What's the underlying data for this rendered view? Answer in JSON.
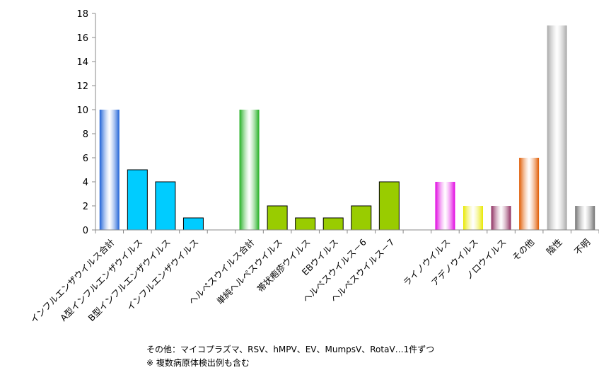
{
  "chart_data": {
    "type": "bar",
    "title": "",
    "xlabel": "",
    "ylabel": "",
    "ylim": [
      0,
      18
    ],
    "yticks": [
      0,
      2,
      4,
      6,
      8,
      10,
      12,
      14,
      16,
      18
    ],
    "grid": false,
    "legend": "none",
    "categories": [
      "インフルエンザウイルス合計",
      "A型インフルエンザウイルス",
      "B型インフルエンザウイルス",
      "インフルエンザウイルス",
      "",
      "ヘルペスウイルス合計",
      "単純ヘルペスウイルス",
      "帯状疱疹ウイルス",
      "EBウイルス",
      "ヘルペスウイルス－6",
      "ヘルペスウイルス－7",
      "",
      "ライノウイルス",
      "アデノウイルス",
      "ノロウイルス",
      "その他",
      "陰性",
      "不明"
    ],
    "values": [
      10,
      5,
      4,
      1,
      0,
      10,
      2,
      1,
      1,
      2,
      4,
      0,
      4,
      2,
      2,
      6,
      17,
      2
    ],
    "colors": [
      "#1a5fd6",
      "#00ccff",
      "#00ccff",
      "#00ccff",
      "",
      "#1fae1f",
      "#99cc00",
      "#99cc00",
      "#99cc00",
      "#99cc00",
      "#99cc00",
      "",
      "#e000e0",
      "#e8e800",
      "#8c2a5c",
      "#e05a00",
      "#a8a8a8",
      "#707070"
    ],
    "gradient_bars": [
      0,
      5,
      12,
      13,
      14,
      15,
      16,
      17
    ]
  },
  "notes": {
    "line1": "その他：マイコプラズマ、RSV、hMPV、EV、MumpsV、RotaV…1件ずつ",
    "line2": "※ 複数病原体検出例も含む"
  }
}
